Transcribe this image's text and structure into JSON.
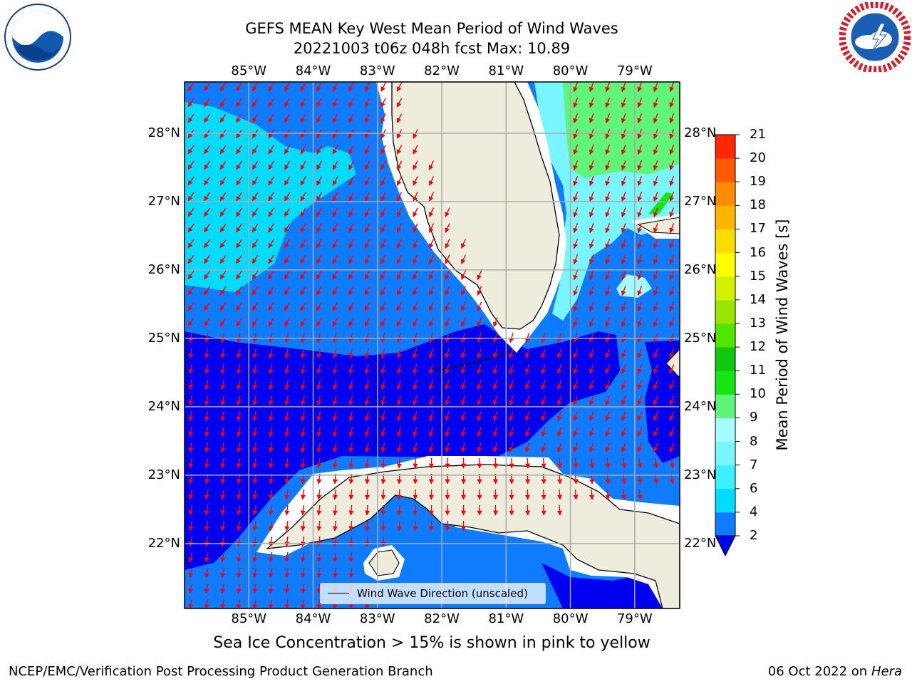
{
  "title": {
    "line1": "GEFS MEAN Key West Mean Period of Wind Waves",
    "line2": "20221003 t06z 048h fcst   Max: 10.89"
  },
  "logos": {
    "left": {
      "icon": "noaa-logo",
      "text": "NOAA",
      "ring_text": "NATIONAL OCEANIC AND ATMOSPHERIC ADMINISTRATION · U.S. DEPARTMENT OF COMMERCE"
    },
    "right": {
      "icon": "nws-logo",
      "ring_text": "NATIONAL WEATHER SERVICE"
    }
  },
  "map": {
    "lon_labels": [
      "85°W",
      "84°W",
      "83°W",
      "82°W",
      "81°W",
      "80°W",
      "79°W"
    ],
    "lat_labels": [
      "28°N",
      "27°N",
      "26°N",
      "25°N",
      "24°N",
      "23°N",
      "22°N"
    ],
    "lon_range": [
      -86.0,
      -78.3
    ],
    "lat_range": [
      21.05,
      28.75
    ],
    "arrow_color": "#ff0000",
    "land_color": "#eeecdc",
    "legend": {
      "label": "Wind Wave Direction (unscaled)"
    }
  },
  "colorbar": {
    "label": "Mean Period of Wind Waves [s]",
    "ticks": [
      "2",
      "4",
      "6",
      "7",
      "8",
      "9",
      "10",
      "11",
      "12",
      "13",
      "14",
      "15",
      "16",
      "17",
      "18",
      "19",
      "20",
      "21"
    ],
    "colors": [
      "#0f7bff",
      "#00dcff",
      "#3cf0ff",
      "#78f5ff",
      "#a5fcff",
      "#5ef57a",
      "#14e614",
      "#0fc80f",
      "#50e600",
      "#9ae600",
      "#d2f000",
      "#ffff00",
      "#ffdc00",
      "#ffb400",
      "#ff8c00",
      "#ff5a00",
      "#ff2800"
    ],
    "under_color": "#0000f0"
  },
  "subtitle": "Sea Ice Concentration > 15% is shown in pink to yellow",
  "footer": {
    "left": "NCEP/EMC/Verification Post Processing Product Generation Branch",
    "right_date": "06 Oct 2022 on ",
    "right_host": "Hera"
  }
}
